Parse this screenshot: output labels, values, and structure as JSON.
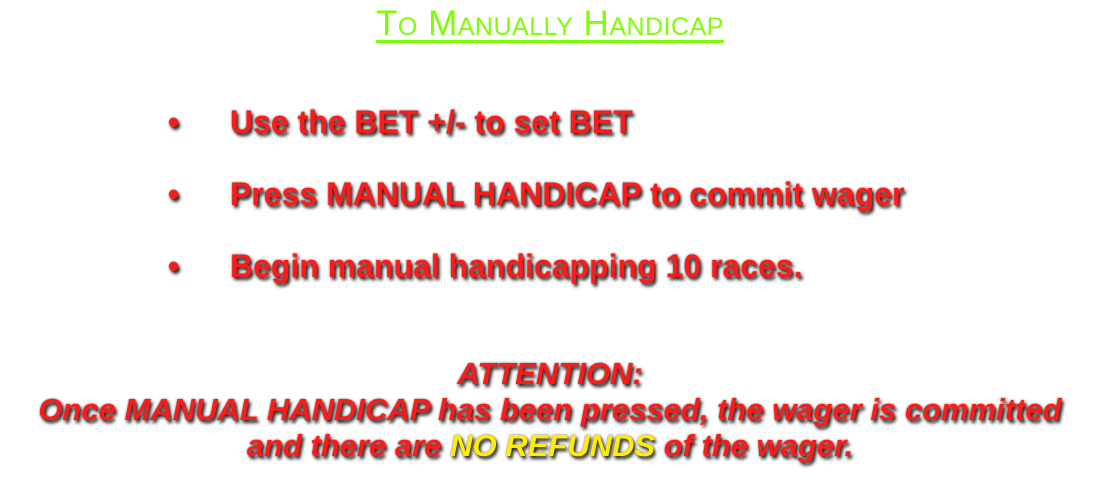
{
  "title": "To Manually Handicap",
  "bullets": [
    {
      "marker": "•",
      "text": "Use the BET +/- to set BET"
    },
    {
      "marker": "•",
      "text": "Press MANUAL HANDICAP to commit wager"
    },
    {
      "marker": "•",
      "text": "Begin manual handicapping 10 races."
    }
  ],
  "attention": {
    "heading": "ATTENTION:",
    "line1": "Once MANUAL HANDICAP has been pressed, the wager is committed",
    "line2_before": "and there are ",
    "line2_highlight": "NO REFUNDS",
    "line2_after": " of the wager."
  },
  "colors": {
    "title": "#7cff00",
    "body_text": "#ff1a1a",
    "highlight": "#ffee00",
    "background": "#ffffff"
  }
}
